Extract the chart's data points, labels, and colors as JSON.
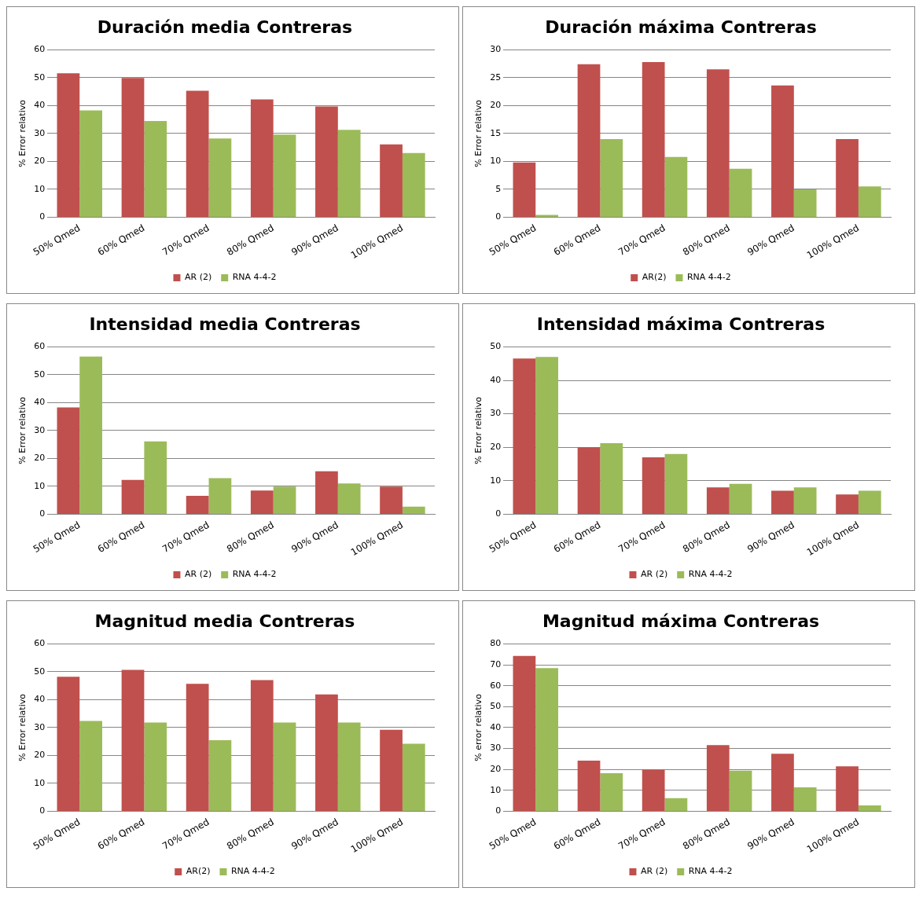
{
  "chart_data": [
    {
      "type": "bar",
      "title": "Duración media Contreras",
      "ylabel": "% Error relativo",
      "categories": [
        "50% Qmed",
        "60% Qmed",
        "70% Qmed",
        "80% Qmed",
        "90% Qmed",
        "100% Qmed"
      ],
      "series": [
        {
          "name": "AR (2)",
          "color": "#c0504d",
          "values": [
            51.6,
            49.9,
            45.3,
            42.2,
            39.7,
            26.1
          ]
        },
        {
          "name": "RNA 4-4-2",
          "color": "#9bbb59",
          "values": [
            38.3,
            34.5,
            28.2,
            29.6,
            31.3,
            23.0
          ]
        }
      ],
      "ylim": [
        0,
        60
      ],
      "yticks": [
        0,
        10,
        20,
        30,
        40,
        50,
        60
      ],
      "grid": "y",
      "legend": "bottom"
    },
    {
      "type": "bar",
      "title": "Duración máxima Contreras",
      "ylabel": "% Error relativo",
      "categories": [
        "50% Qmed",
        "60% Qmed",
        "70% Qmed",
        "80% Qmed",
        "90% Qmed",
        "100% Qmed"
      ],
      "series": [
        {
          "name": "AR(2)",
          "color": "#c0504d",
          "values": [
            9.8,
            27.4,
            27.8,
            26.5,
            23.6,
            14.0
          ]
        },
        {
          "name": "RNA 4-4-2",
          "color": "#9bbb59",
          "values": [
            0.4,
            14.0,
            10.8,
            8.7,
            5.0,
            5.5
          ]
        }
      ],
      "ylim": [
        0,
        30
      ],
      "yticks": [
        0,
        5,
        10,
        15,
        20,
        25,
        30
      ],
      "grid": "y",
      "legend": "bottom"
    },
    {
      "type": "bar",
      "title": "Intensidad media Contreras",
      "ylabel": "% Error relativo",
      "categories": [
        "50% Qmed",
        "60% Qmed",
        "70% Qmed",
        "80% Qmed",
        "90% Qmed",
        "100% Qmed"
      ],
      "series": [
        {
          "name": "AR (2)",
          "color": "#c0504d",
          "values": [
            38.3,
            12.3,
            6.6,
            8.5,
            15.4,
            9.9
          ]
        },
        {
          "name": "RNA 4-4-2",
          "color": "#9bbb59",
          "values": [
            56.5,
            26.1,
            12.9,
            9.9,
            11.0,
            2.7
          ]
        }
      ],
      "ylim": [
        0,
        60
      ],
      "yticks": [
        0,
        10,
        20,
        30,
        40,
        50,
        60
      ],
      "grid": "y",
      "legend": "bottom"
    },
    {
      "type": "bar",
      "title": "Intensidad máxima Contreras",
      "ylabel": "% Error relativo",
      "categories": [
        "50% Qmed",
        "60% Qmed",
        "70% Qmed",
        "80% Qmed",
        "90% Qmed",
        "100% Qmed"
      ],
      "series": [
        {
          "name": "AR (2)",
          "color": "#c0504d",
          "values": [
            46.5,
            20.0,
            17.0,
            8.0,
            7.0,
            5.9
          ]
        },
        {
          "name": "RNA 4-4-2",
          "color": "#9bbb59",
          "values": [
            47.0,
            21.2,
            18.0,
            9.1,
            8.0,
            7.0
          ]
        }
      ],
      "ylim": [
        0,
        50
      ],
      "yticks": [
        0,
        10,
        20,
        30,
        40,
        50
      ],
      "grid": "y",
      "legend": "bottom"
    },
    {
      "type": "bar",
      "title": "Magnitud media Contreras",
      "ylabel": "% Error relativo",
      "categories": [
        "50% Qmed",
        "60% Qmed",
        "70% Qmed",
        "80% Qmed",
        "90% Qmed",
        "100% Qmed"
      ],
      "series": [
        {
          "name": "AR(2)",
          "color": "#c0504d",
          "values": [
            48.2,
            50.7,
            45.7,
            47.0,
            41.9,
            29.2
          ]
        },
        {
          "name": "RNA 4-4-2",
          "color": "#9bbb59",
          "values": [
            32.4,
            31.8,
            25.5,
            31.8,
            31.8,
            24.2
          ]
        }
      ],
      "ylim": [
        0,
        60
      ],
      "yticks": [
        0,
        10,
        20,
        30,
        40,
        50,
        60
      ],
      "grid": "y",
      "legend": "bottom"
    },
    {
      "type": "bar",
      "title": "Magnitud máxima Contreras",
      "ylabel": "% error relativo",
      "categories": [
        "50% Qmed",
        "60% Qmed",
        "70% Qmed",
        "80% Qmed",
        "90% Qmed",
        "100% Qmed"
      ],
      "series": [
        {
          "name": "AR (2)",
          "color": "#c0504d",
          "values": [
            74.2,
            24.2,
            19.9,
            31.6,
            27.5,
            21.5
          ]
        },
        {
          "name": "RNA 4-4-2",
          "color": "#9bbb59",
          "values": [
            68.4,
            18.2,
            6.3,
            19.4,
            11.4,
            2.8
          ]
        }
      ],
      "ylim": [
        0,
        80
      ],
      "yticks": [
        0,
        10,
        20,
        30,
        40,
        50,
        60,
        70,
        80
      ],
      "grid": "y",
      "legend": "bottom"
    }
  ]
}
